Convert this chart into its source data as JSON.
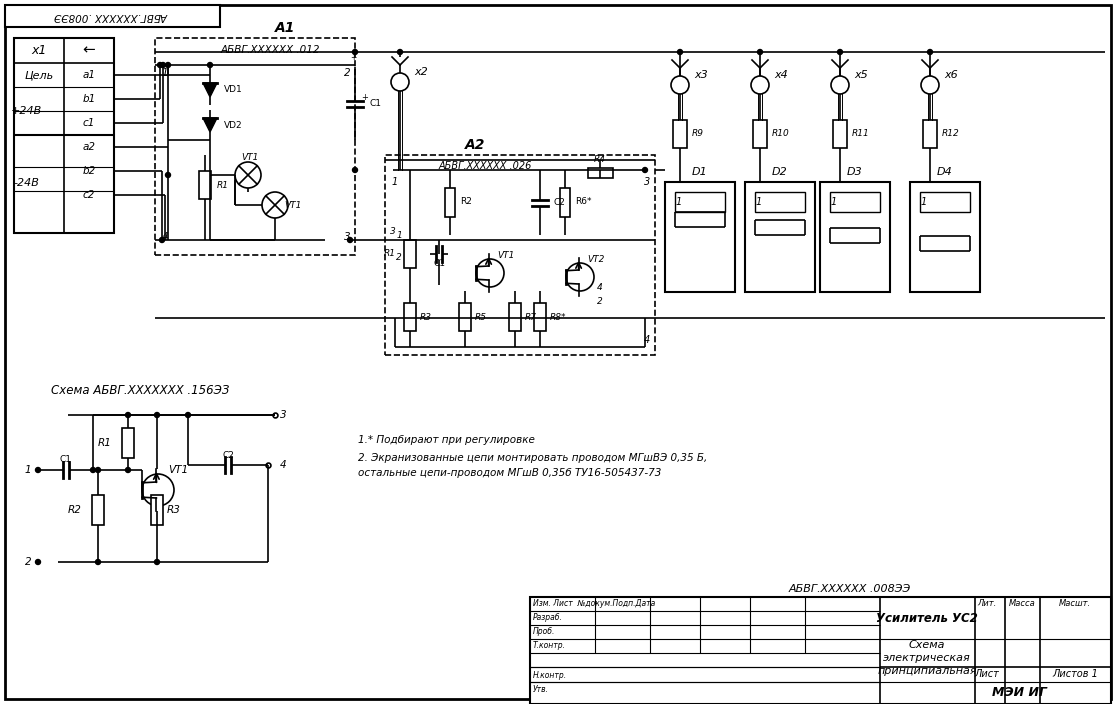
{
  "bg_color": "#ffffff",
  "line_color": "#000000",
  "title_stamp": "АБВГ.XXXXXX .008ЭЭ",
  "stamp_title1": "Усилитель УС2",
  "stamp_title2": "Схема",
  "stamp_title3": "электрическая",
  "stamp_title4": "принципиальная",
  "stamp_sheet": "Лист",
  "stamp_sheets": "Листов 1",
  "stamp_org": "МЭИ ИГ",
  "header_text": "АБВГ.XXXXXX .008ЭЭ",
  "note1": "1.* Подбирают при регулировке",
  "note2": "2. Экранизованные цепи монтировать проводом МГшВЭ 0,35 Б,",
  "note3": "остальные цепи-проводом МГшВ 0,35б ТУ16-505437-73",
  "schema_label": "Схема АБВГ.XXXXXXX .156ЭЗ",
  "a1_label": "А1",
  "a1_sub": "АБВГ.XXXXXX .012",
  "a2_label": "А2",
  "a2_sub": "АБВГ.XXXXXX .026"
}
